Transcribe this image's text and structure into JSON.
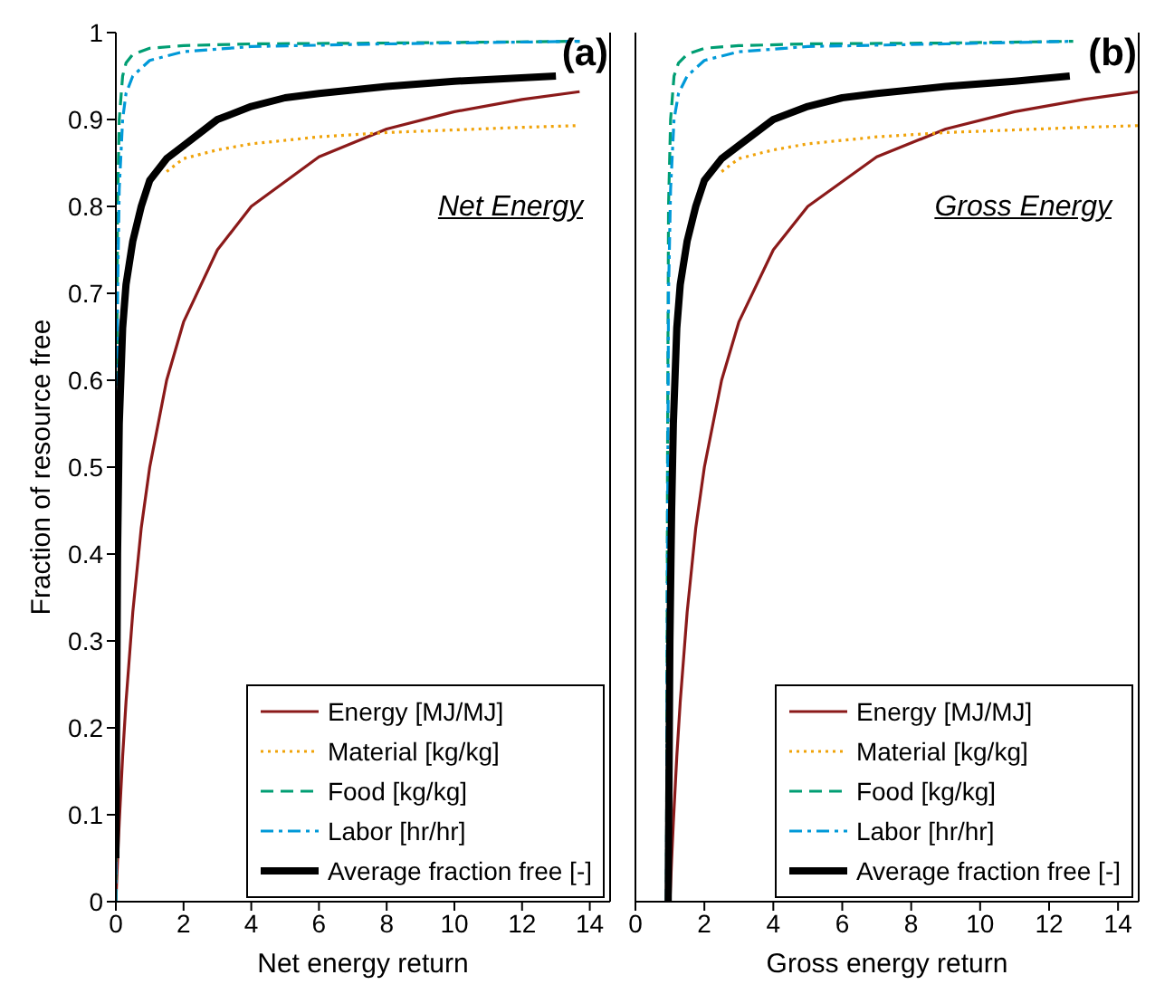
{
  "chart_data": [
    {
      "type": "line",
      "xlabel": "Net energy return",
      "ylabel": "Fraction of resource free",
      "annotations": [
        "(a)",
        "Net Energy"
      ],
      "xlim": [
        0,
        14.6
      ],
      "ylim": [
        0,
        1
      ],
      "xticks": [
        0,
        2,
        4,
        6,
        8,
        10,
        12,
        14
      ],
      "yticks": [
        0,
        0.1,
        0.2,
        0.3,
        0.4,
        0.5,
        0.6,
        0.7,
        0.8,
        0.9,
        1
      ],
      "grid": false,
      "legend": "bottom right",
      "marker": "none",
      "series": [
        {
          "name": "Energy [MJ/MJ]",
          "color": "#8b1a1a",
          "line_style": "solid",
          "x": [
            0,
            0.05,
            0.1,
            0.2,
            0.3,
            0.5,
            0.75,
            1,
            1.5,
            2,
            3,
            4,
            6,
            8,
            10,
            12,
            13.7
          ],
          "values": [
            0,
            0.048,
            0.091,
            0.167,
            0.23,
            0.333,
            0.43,
            0.5,
            0.6,
            0.667,
            0.75,
            0.8,
            0.857,
            0.889,
            0.909,
            0.923,
            0.932
          ]
        },
        {
          "name": "Material [kg/kg]",
          "color": "#f0a30a",
          "line_style": "dotted",
          "x": [
            1.5,
            2,
            3,
            4,
            6,
            8,
            10,
            12,
            13.7
          ],
          "values": [
            0.84,
            0.855,
            0.865,
            0.872,
            0.88,
            0.885,
            0.888,
            0.891,
            0.893
          ]
        },
        {
          "name": "Food [kg/kg]",
          "color": "#009e73",
          "line_style": "dashed",
          "x": [
            0,
            0.02,
            0.05,
            0.1,
            0.2,
            0.3,
            0.5,
            1,
            2,
            4,
            8,
            13.7
          ],
          "values": [
            0,
            0.5,
            0.8,
            0.9,
            0.95,
            0.965,
            0.975,
            0.982,
            0.985,
            0.987,
            0.988,
            0.99
          ]
        },
        {
          "name": "Labor [hr/hr]",
          "color": "#0099d8",
          "line_style": "dashdot",
          "x": [
            0,
            0.02,
            0.05,
            0.1,
            0.2,
            0.3,
            0.5,
            1,
            2,
            4,
            8,
            13.7
          ],
          "values": [
            0,
            0.4,
            0.7,
            0.82,
            0.9,
            0.93,
            0.95,
            0.968,
            0.978,
            0.984,
            0.987,
            0.99
          ]
        },
        {
          "name": "Average fraction free [-]",
          "color": "#000000",
          "line_style": "solid",
          "x": [
            0,
            0.05,
            0.1,
            0.2,
            0.3,
            0.5,
            0.75,
            1,
            1.5,
            2,
            3,
            4,
            5,
            6,
            8,
            10,
            13
          ],
          "values": [
            0.05,
            0.4,
            0.55,
            0.66,
            0.71,
            0.76,
            0.8,
            0.83,
            0.855,
            0.87,
            0.9,
            0.915,
            0.925,
            0.93,
            0.938,
            0.944,
            0.95
          ]
        }
      ]
    },
    {
      "type": "line",
      "xlabel": "Gross energy return",
      "annotations": [
        "(b)",
        "Gross Energy"
      ],
      "xlim": [
        0,
        14.6
      ],
      "ylim": [
        0,
        1
      ],
      "xticks": [
        0,
        2,
        4,
        6,
        8,
        10,
        12,
        14
      ],
      "yticks": [
        0,
        0.1,
        0.2,
        0.3,
        0.4,
        0.5,
        0.6,
        0.7,
        0.8,
        0.9,
        1
      ],
      "tick_labels": "x",
      "grid": false,
      "legend": "bottom right",
      "marker": "none",
      "series": [
        {
          "name": "Energy [MJ/MJ]",
          "color": "#8b1a1a",
          "line_style": "solid",
          "x": [
            1,
            1.05,
            1.1,
            1.2,
            1.3,
            1.5,
            1.75,
            2,
            2.5,
            3,
            4,
            5,
            7,
            9,
            11,
            13,
            14.6
          ],
          "values": [
            0,
            0.048,
            0.091,
            0.167,
            0.23,
            0.333,
            0.43,
            0.5,
            0.6,
            0.667,
            0.75,
            0.8,
            0.857,
            0.889,
            0.909,
            0.923,
            0.932
          ]
        },
        {
          "name": "Material [kg/kg]",
          "color": "#f0a30a",
          "line_style": "dotted",
          "x": [
            2.5,
            3,
            4,
            5,
            7,
            9,
            11,
            13,
            14.6
          ],
          "values": [
            0.84,
            0.855,
            0.865,
            0.872,
            0.88,
            0.885,
            0.888,
            0.891,
            0.893
          ]
        },
        {
          "name": "Food [kg/kg]",
          "color": "#009e73",
          "line_style": "dashed",
          "x": [
            0.9,
            0.93,
            0.96,
            1.02,
            1.12,
            1.25,
            1.5,
            2,
            3,
            5,
            9,
            12.7
          ],
          "values": [
            0,
            0.5,
            0.8,
            0.9,
            0.95,
            0.965,
            0.975,
            0.982,
            0.985,
            0.987,
            0.988,
            0.99
          ]
        },
        {
          "name": "Labor [hr/hr]",
          "color": "#0099d8",
          "line_style": "dashdot",
          "x": [
            0.9,
            0.93,
            0.96,
            1.02,
            1.12,
            1.25,
            1.5,
            2,
            3,
            5,
            9,
            12.7
          ],
          "values": [
            0,
            0.4,
            0.7,
            0.82,
            0.9,
            0.93,
            0.95,
            0.968,
            0.978,
            0.984,
            0.987,
            0.99
          ]
        },
        {
          "name": "Average fraction free [-]",
          "color": "#000000",
          "line_style": "solid",
          "x": [
            0.95,
            1.0,
            1.05,
            1.1,
            1.2,
            1.3,
            1.5,
            1.75,
            2,
            2.5,
            3,
            4,
            5,
            6,
            7,
            9,
            11,
            12.6
          ],
          "values": [
            0,
            0.3,
            0.45,
            0.55,
            0.66,
            0.71,
            0.76,
            0.8,
            0.83,
            0.855,
            0.87,
            0.9,
            0.915,
            0.925,
            0.93,
            0.938,
            0.944,
            0.95
          ]
        }
      ]
    }
  ]
}
